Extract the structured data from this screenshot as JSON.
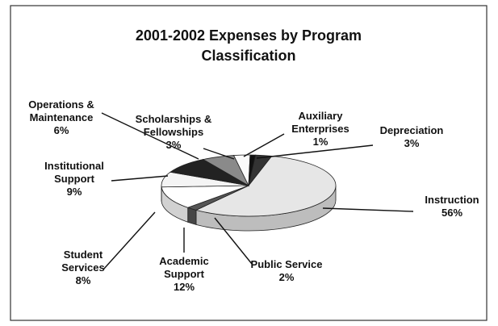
{
  "chart_data": {
    "type": "pie3d",
    "title": "2001-2002 Expenses by Program Classification",
    "categories": [
      "Instruction",
      "Public Service",
      "Academic Support",
      "Student Services",
      "Institutional Support",
      "Operations & Maintenance",
      "Scholarships & Fellowships",
      "Auxiliary Enterprises",
      "Depreciation"
    ],
    "values": [
      56,
      2,
      12,
      8,
      9,
      6,
      3,
      1,
      3
    ],
    "value_labels": [
      "56%",
      "2%",
      "12%",
      "8%",
      "9%",
      "6%",
      "3%",
      "1%",
      "3%"
    ],
    "colors": [
      "#e6e6e6",
      "#555555",
      "#ffffff",
      "#f4f4f4",
      "#222222",
      "#8a8a8a",
      "#fafafa",
      "#111111",
      "#333333"
    ]
  }
}
